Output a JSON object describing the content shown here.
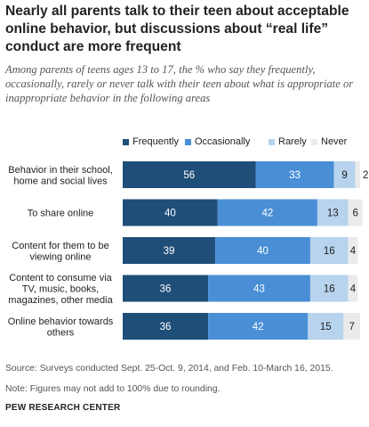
{
  "title": "Nearly all parents talk to their teen about acceptable online behavior, but discussions about “real life” conduct are more frequent",
  "subtitle": "Among parents of teens ages 13 to 17, the % who say they frequently, occasionally, rarely or never talk with their teen about what is appropriate or inappropriate behavior in the following areas",
  "colors": {
    "frequently": "#1f4e79",
    "occasionally": "#4a8fd6",
    "rarely": "#b7d3ee",
    "never": "#ebebeb"
  },
  "chart_data": {
    "type": "bar",
    "orientation": "horizontal",
    "stacked": true,
    "categories": [
      [
        "Behavior in their school,",
        "home and social lives"
      ],
      [
        "To share online"
      ],
      [
        "Content for them to be",
        "viewing online"
      ],
      [
        "Content to consume via",
        "TV, music, books,",
        "magazines, other media"
      ],
      [
        "Online behavior towards",
        "others"
      ]
    ],
    "series": [
      {
        "name": "Frequently",
        "values": [
          56,
          40,
          39,
          36,
          36
        ]
      },
      {
        "name": "Occasionally",
        "values": [
          33,
          42,
          40,
          43,
          42
        ]
      },
      {
        "name": "Rarely",
        "values": [
          9,
          13,
          16,
          16,
          15
        ]
      },
      {
        "name": "Never",
        "values": [
          2,
          6,
          4,
          4,
          7
        ]
      }
    ],
    "xlim": [
      0,
      100
    ],
    "legend_position": "top",
    "grid": false
  },
  "footer": {
    "source": "Source: Surveys conducted Sept. 25-Oct. 9, 2014, and Feb. 10-March 16, 2015.",
    "note": "Note: Figures may not add to 100% due to rounding.",
    "org": "PEW RESEARCH CENTER"
  }
}
